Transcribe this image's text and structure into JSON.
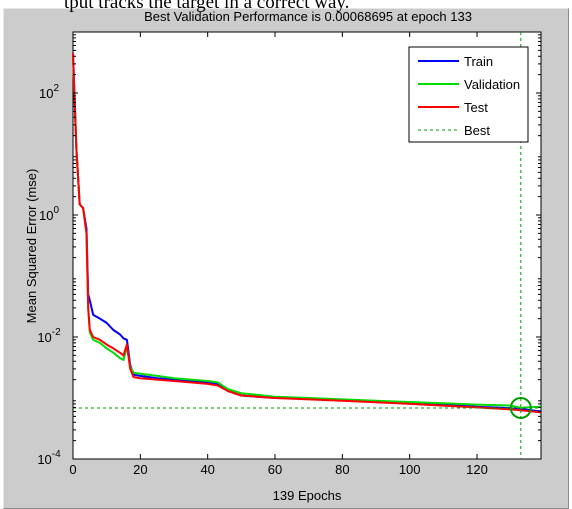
{
  "caption": "tput tracks the target in a correct way.",
  "chart_data": {
    "type": "line",
    "title": "Best Validation Performance is 0.00068695 at epoch 133",
    "xlabel": "139 Epochs",
    "ylabel": "Mean Squared Error  (mse)",
    "xlim": [
      0,
      139
    ],
    "ylim": [
      0.0001,
      1000
    ],
    "yscale": "log",
    "grid": false,
    "legend_position": "top-right",
    "x_ticks": [
      {
        "value": 0,
        "label": "0"
      },
      {
        "value": 20,
        "label": "20"
      },
      {
        "value": 40,
        "label": "40"
      },
      {
        "value": 60,
        "label": "60"
      },
      {
        "value": 80,
        "label": "80"
      },
      {
        "value": 100,
        "label": "100"
      },
      {
        "value": 120,
        "label": "120"
      }
    ],
    "y_ticks": [
      {
        "value": 0.0001,
        "base": "10",
        "exp": "-4"
      },
      {
        "value": 0.01,
        "base": "10",
        "exp": "-2"
      },
      {
        "value": 1,
        "base": "10",
        "exp": "0"
      },
      {
        "value": 100,
        "base": "10",
        "exp": "2"
      }
    ],
    "series": [
      {
        "name": "Train",
        "color": "#0000ff",
        "x": [
          0,
          1,
          2,
          3,
          4,
          4.5,
          5,
          6,
          8,
          10,
          12,
          14,
          15,
          16,
          17,
          18,
          20,
          25,
          30,
          35,
          40,
          43,
          46,
          50,
          60,
          70,
          80,
          90,
          100,
          110,
          120,
          130,
          133,
          139
        ],
        "y": [
          450,
          12,
          1.5,
          1.3,
          0.6,
          0.05,
          0.04,
          0.023,
          0.02,
          0.017,
          0.013,
          0.011,
          0.0095,
          0.009,
          0.0035,
          0.0024,
          0.0023,
          0.0021,
          0.002,
          0.0019,
          0.0018,
          0.0017,
          0.0013,
          0.0011,
          0.001,
          0.00098,
          0.00092,
          0.00088,
          0.00082,
          0.00078,
          0.00072,
          0.00068,
          0.00066,
          0.0006
        ]
      },
      {
        "name": "Validation",
        "color": "#00dd00",
        "x": [
          0,
          1,
          2,
          3,
          4,
          4.5,
          5,
          6,
          8,
          10,
          12,
          14,
          15,
          16,
          17,
          18,
          20,
          25,
          30,
          35,
          40,
          43,
          46,
          50,
          60,
          70,
          80,
          90,
          100,
          110,
          120,
          130,
          133,
          139
        ],
        "y": [
          450,
          12,
          1.5,
          1.3,
          0.5,
          0.03,
          0.012,
          0.009,
          0.008,
          0.0065,
          0.0055,
          0.0045,
          0.0042,
          0.007,
          0.0033,
          0.0026,
          0.0025,
          0.0023,
          0.0021,
          0.002,
          0.0019,
          0.0018,
          0.0014,
          0.0012,
          0.00105,
          0.001,
          0.00095,
          0.0009,
          0.00086,
          0.00082,
          0.00078,
          0.00075,
          0.00069,
          0.00072
        ]
      },
      {
        "name": "Test",
        "color": "#ff0000",
        "x": [
          0,
          1,
          2,
          3,
          4,
          4.5,
          5,
          6,
          8,
          10,
          12,
          14,
          15,
          16,
          17,
          18,
          20,
          25,
          30,
          35,
          40,
          43,
          46,
          50,
          60,
          70,
          80,
          90,
          100,
          110,
          120,
          130,
          133,
          139
        ],
        "y": [
          450,
          12,
          1.5,
          1.3,
          0.5,
          0.03,
          0.013,
          0.01,
          0.009,
          0.0075,
          0.0065,
          0.0055,
          0.005,
          0.0075,
          0.003,
          0.0022,
          0.0021,
          0.002,
          0.0019,
          0.0018,
          0.0017,
          0.0016,
          0.0013,
          0.0011,
          0.001,
          0.00095,
          0.0009,
          0.00085,
          0.0008,
          0.00075,
          0.0007,
          0.00065,
          0.00063,
          0.00058
        ]
      }
    ],
    "best": {
      "name": "Best",
      "epoch": 133,
      "value": 0.00068695,
      "color": "#009900"
    }
  }
}
